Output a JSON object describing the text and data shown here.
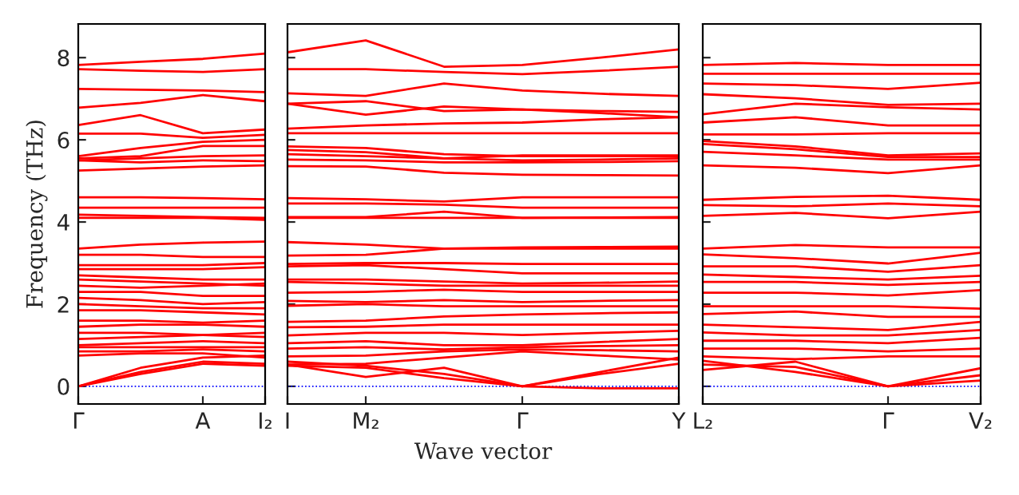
{
  "chart_data": [
    {
      "type": "line",
      "ylabel": "Frequency (THz)",
      "categories": [
        "Γ",
        null,
        "A",
        "I₂"
      ],
      "ylim": [
        -0.43,
        8.82
      ],
      "yticks": [
        0,
        2,
        4,
        6,
        8
      ],
      "line_style": "solid",
      "ref_lines": [
        {
          "axis": "y",
          "value": 0,
          "color": "#0000ff",
          "line_style": "dotted"
        }
      ],
      "series": [
        {
          "color": "#ff0000",
          "values": [
            7.82,
            7.9,
            7.97,
            8.1
          ]
        },
        {
          "color": "#ff0000",
          "values": [
            7.72,
            7.68,
            7.65,
            7.72
          ]
        },
        {
          "color": "#ff0000",
          "values": [
            7.24,
            7.22,
            7.2,
            7.16
          ]
        },
        {
          "color": "#ff0000",
          "values": [
            6.78,
            6.9,
            7.09,
            6.94
          ]
        },
        {
          "color": "#ff0000",
          "values": [
            6.36,
            6.6,
            6.16,
            6.25
          ]
        },
        {
          "color": "#ff0000",
          "values": [
            6.15,
            6.15,
            6.05,
            6.12
          ]
        },
        {
          "color": "#ff0000",
          "values": [
            5.6,
            5.8,
            5.95,
            6.0
          ]
        },
        {
          "color": "#ff0000",
          "values": [
            5.55,
            5.6,
            5.85,
            5.85
          ]
        },
        {
          "color": "#ff0000",
          "values": [
            5.5,
            5.55,
            5.6,
            5.62
          ]
        },
        {
          "color": "#ff0000",
          "values": [
            5.5,
            5.45,
            5.5,
            5.48
          ]
        },
        {
          "color": "#ff0000",
          "values": [
            5.25,
            5.3,
            5.35,
            5.38
          ]
        },
        {
          "color": "#ff0000",
          "values": [
            4.6,
            4.6,
            4.58,
            4.55
          ]
        },
        {
          "color": "#ff0000",
          "values": [
            4.35,
            4.35,
            4.35,
            4.35
          ]
        },
        {
          "color": "#ff0000",
          "values": [
            4.18,
            4.15,
            4.12,
            4.1
          ]
        },
        {
          "color": "#ff0000",
          "values": [
            4.1,
            4.1,
            4.1,
            4.05
          ]
        },
        {
          "color": "#ff0000",
          "values": [
            3.35,
            3.45,
            3.5,
            3.52
          ]
        },
        {
          "color": "#ff0000",
          "values": [
            3.2,
            3.2,
            3.15,
            3.15
          ]
        },
        {
          "color": "#ff0000",
          "values": [
            2.95,
            2.95,
            2.95,
            3.0
          ]
        },
        {
          "color": "#ff0000",
          "values": [
            2.85,
            2.85,
            2.85,
            2.9
          ]
        },
        {
          "color": "#ff0000",
          "values": [
            2.7,
            2.65,
            2.6,
            2.6
          ]
        },
        {
          "color": "#ff0000",
          "values": [
            2.6,
            2.55,
            2.5,
            2.45
          ]
        },
        {
          "color": "#ff0000",
          "values": [
            2.45,
            2.4,
            2.45,
            2.5
          ]
        },
        {
          "color": "#ff0000",
          "values": [
            2.3,
            2.3,
            2.2,
            2.2
          ]
        },
        {
          "color": "#ff0000",
          "values": [
            2.15,
            2.1,
            2.0,
            2.05
          ]
        },
        {
          "color": "#ff0000",
          "values": [
            2.0,
            1.95,
            1.9,
            1.9
          ]
        },
        {
          "color": "#ff0000",
          "values": [
            1.85,
            1.85,
            1.8,
            1.75
          ]
        },
        {
          "color": "#ff0000",
          "values": [
            1.6,
            1.6,
            1.55,
            1.6
          ]
        },
        {
          "color": "#ff0000",
          "values": [
            1.45,
            1.5,
            1.5,
            1.45
          ]
        },
        {
          "color": "#ff0000",
          "values": [
            1.3,
            1.3,
            1.25,
            1.3
          ]
        },
        {
          "color": "#ff0000",
          "values": [
            1.15,
            1.2,
            1.25,
            1.2
          ]
        },
        {
          "color": "#ff0000",
          "values": [
            1.0,
            1.05,
            1.1,
            1.05
          ]
        },
        {
          "color": "#ff0000",
          "values": [
            0.95,
            0.95,
            0.95,
            0.95
          ]
        },
        {
          "color": "#ff0000",
          "values": [
            0.85,
            0.85,
            0.9,
            0.85
          ]
        },
        {
          "color": "#ff0000",
          "values": [
            0.75,
            0.8,
            0.8,
            0.7
          ]
        },
        {
          "color": "#ff0000",
          "values": [
            0.0,
            0.45,
            0.7,
            0.75
          ]
        },
        {
          "color": "#ff0000",
          "values": [
            0.0,
            0.35,
            0.6,
            0.55
          ]
        },
        {
          "color": "#ff0000",
          "values": [
            0.0,
            0.3,
            0.55,
            0.5
          ]
        }
      ]
    },
    {
      "type": "line",
      "xlabel": "Wave vector",
      "categories": [
        "I",
        "M₂",
        null,
        "Γ",
        null,
        "Y"
      ],
      "ylim": [
        -0.43,
        8.82
      ],
      "yticks": [
        {
          "value": 0,
          "label": null
        },
        {
          "value": 2,
          "label": null
        },
        {
          "value": 4,
          "label": null
        },
        {
          "value": 6,
          "label": null
        },
        {
          "value": 8,
          "label": null
        }
      ],
      "tick_labels": "x",
      "line_style": "solid",
      "ref_lines": [
        {
          "axis": "y",
          "value": 0,
          "color": "#0000ff",
          "line_style": "dotted"
        }
      ],
      "series": [
        {
          "color": "#ff0000",
          "values": [
            8.13,
            8.42,
            7.78,
            7.82,
            8.0,
            8.2
          ]
        },
        {
          "color": "#ff0000",
          "values": [
            7.72,
            7.72,
            7.65,
            7.6,
            7.68,
            7.78
          ]
        },
        {
          "color": "#ff0000",
          "values": [
            7.13,
            7.07,
            7.37,
            7.2,
            7.12,
            7.07
          ]
        },
        {
          "color": "#ff0000",
          "values": [
            6.88,
            6.94,
            6.7,
            6.74,
            6.65,
            6.55
          ]
        },
        {
          "color": "#ff0000",
          "values": [
            6.88,
            6.61,
            6.81,
            6.74,
            6.7,
            6.68
          ]
        },
        {
          "color": "#ff0000",
          "values": [
            6.27,
            6.35,
            6.4,
            6.42,
            6.5,
            6.55
          ]
        },
        {
          "color": "#ff0000",
          "values": [
            6.16,
            6.16,
            6.16,
            6.16,
            6.16,
            6.16
          ]
        },
        {
          "color": "#ff0000",
          "values": [
            5.84,
            5.8,
            5.65,
            5.6,
            5.6,
            5.6
          ]
        },
        {
          "color": "#ff0000",
          "values": [
            5.75,
            5.7,
            5.55,
            5.5,
            5.52,
            5.55
          ]
        },
        {
          "color": "#ff0000",
          "values": [
            5.65,
            5.6,
            5.55,
            5.62,
            5.62,
            5.62
          ]
        },
        {
          "color": "#ff0000",
          "values": [
            5.52,
            5.5,
            5.45,
            5.45,
            5.46,
            5.48
          ]
        },
        {
          "color": "#ff0000",
          "values": [
            5.36,
            5.35,
            5.2,
            5.15,
            5.14,
            5.13
          ]
        },
        {
          "color": "#ff0000",
          "values": [
            4.58,
            4.55,
            4.5,
            4.6,
            4.6,
            4.6
          ]
        },
        {
          "color": "#ff0000",
          "values": [
            4.45,
            4.45,
            4.42,
            4.35,
            4.35,
            4.35
          ]
        },
        {
          "color": "#ff0000",
          "values": [
            4.12,
            4.12,
            4.25,
            4.1,
            4.11,
            4.12
          ]
        },
        {
          "color": "#ff0000",
          "values": [
            4.1,
            4.1,
            4.1,
            4.1,
            4.1,
            4.1
          ]
        },
        {
          "color": "#ff0000",
          "values": [
            3.51,
            3.45,
            3.35,
            3.35,
            3.35,
            3.35
          ]
        },
        {
          "color": "#ff0000",
          "values": [
            3.18,
            3.2,
            3.35,
            3.38,
            3.39,
            3.4
          ]
        },
        {
          "color": "#ff0000",
          "values": [
            2.98,
            3.0,
            3.0,
            2.98,
            2.98,
            2.98
          ]
        },
        {
          "color": "#ff0000",
          "values": [
            2.92,
            2.95,
            2.85,
            2.75,
            2.75,
            2.75
          ]
        },
        {
          "color": "#ff0000",
          "values": [
            2.6,
            2.6,
            2.55,
            2.5,
            2.52,
            2.55
          ]
        },
        {
          "color": "#ff0000",
          "values": [
            2.54,
            2.5,
            2.45,
            2.45,
            2.45,
            2.45
          ]
        },
        {
          "color": "#ff0000",
          "values": [
            2.28,
            2.3,
            2.35,
            2.3,
            2.3,
            2.3
          ]
        },
        {
          "color": "#ff0000",
          "values": [
            2.08,
            2.05,
            2.1,
            2.05,
            2.08,
            2.1
          ]
        },
        {
          "color": "#ff0000",
          "values": [
            1.96,
            2.0,
            1.95,
            1.95,
            1.95,
            1.95
          ]
        },
        {
          "color": "#ff0000",
          "values": [
            1.57,
            1.6,
            1.7,
            1.75,
            1.78,
            1.8
          ]
        },
        {
          "color": "#ff0000",
          "values": [
            1.44,
            1.45,
            1.5,
            1.5,
            1.5,
            1.5
          ]
        },
        {
          "color": "#ff0000",
          "values": [
            1.24,
            1.3,
            1.3,
            1.25,
            1.3,
            1.35
          ]
        },
        {
          "color": "#ff0000",
          "values": [
            1.05,
            1.1,
            1.0,
            1.0,
            1.08,
            1.15
          ]
        },
        {
          "color": "#ff0000",
          "values": [
            0.92,
            0.95,
            0.9,
            0.95,
            0.98,
            1.0
          ]
        },
        {
          "color": "#ff0000",
          "values": [
            0.73,
            0.75,
            0.85,
            0.9,
            0.88,
            0.85
          ]
        },
        {
          "color": "#ff0000",
          "values": [
            0.53,
            0.55,
            0.7,
            0.85,
            0.75,
            0.65
          ]
        },
        {
          "color": "#ff0000",
          "values": [
            0.53,
            0.23,
            0.45,
            0,
            0.35,
            0.7
          ]
        },
        {
          "color": "#ff0000",
          "values": [
            0.6,
            0.5,
            0.3,
            0,
            0.3,
            0.55
          ]
        },
        {
          "color": "#ff0000",
          "values": [
            0.5,
            0.45,
            0.2,
            0,
            -0.05,
            -0.05
          ]
        }
      ]
    },
    {
      "type": "line",
      "categories": [
        "L₂",
        null,
        "Γ",
        "V₂"
      ],
      "ylim": [
        -0.43,
        8.82
      ],
      "yticks": [
        {
          "value": 0,
          "label": null
        },
        {
          "value": 2,
          "label": null
        },
        {
          "value": 4,
          "label": null
        },
        {
          "value": 6,
          "label": null
        },
        {
          "value": 8,
          "label": null
        }
      ],
      "tick_labels": "x",
      "line_style": "solid",
      "ref_lines": [
        {
          "axis": "y",
          "value": 0,
          "color": "#0000ff",
          "line_style": "dotted"
        }
      ],
      "series": [
        {
          "color": "#ff0000",
          "values": [
            7.82,
            7.87,
            7.82,
            7.82
          ]
        },
        {
          "color": "#ff0000",
          "values": [
            7.61,
            7.61,
            7.61,
            7.61
          ]
        },
        {
          "color": "#ff0000",
          "values": [
            7.37,
            7.33,
            7.24,
            7.39
          ]
        },
        {
          "color": "#ff0000",
          "values": [
            7.11,
            7.01,
            6.85,
            6.88
          ]
        },
        {
          "color": "#ff0000",
          "values": [
            6.62,
            6.88,
            6.79,
            6.74
          ]
        },
        {
          "color": "#ff0000",
          "values": [
            6.42,
            6.55,
            6.35,
            6.35
          ]
        },
        {
          "color": "#ff0000",
          "values": [
            6.13,
            6.13,
            6.16,
            6.16
          ]
        },
        {
          "color": "#ff0000",
          "values": [
            5.97,
            5.84,
            5.62,
            5.67
          ]
        },
        {
          "color": "#ff0000",
          "values": [
            5.9,
            5.77,
            5.58,
            5.58
          ]
        },
        {
          "color": "#ff0000",
          "values": [
            5.71,
            5.62,
            5.52,
            5.52
          ]
        },
        {
          "color": "#ff0000",
          "values": [
            5.38,
            5.32,
            5.19,
            5.38
          ]
        },
        {
          "color": "#ff0000",
          "values": [
            4.54,
            4.61,
            4.64,
            4.54
          ]
        },
        {
          "color": "#ff0000",
          "values": [
            4.41,
            4.38,
            4.45,
            4.38
          ]
        },
        {
          "color": "#ff0000",
          "values": [
            4.15,
            4.22,
            4.09,
            4.25
          ]
        },
        {
          "color": "#ff0000",
          "values": [
            3.35,
            3.44,
            3.38,
            3.38
          ]
        },
        {
          "color": "#ff0000",
          "values": [
            3.21,
            3.12,
            2.99,
            3.25
          ]
        },
        {
          "color": "#ff0000",
          "values": [
            2.92,
            2.92,
            2.79,
            2.95
          ]
        },
        {
          "color": "#ff0000",
          "values": [
            2.72,
            2.66,
            2.6,
            2.69
          ]
        },
        {
          "color": "#ff0000",
          "values": [
            2.54,
            2.54,
            2.47,
            2.54
          ]
        },
        {
          "color": "#ff0000",
          "values": [
            2.28,
            2.28,
            2.21,
            2.34
          ]
        },
        {
          "color": "#ff0000",
          "values": [
            1.95,
            1.95,
            1.95,
            1.89
          ]
        },
        {
          "color": "#ff0000",
          "values": [
            1.76,
            1.82,
            1.69,
            1.69
          ]
        },
        {
          "color": "#ff0000",
          "values": [
            1.5,
            1.44,
            1.37,
            1.57
          ]
        },
        {
          "color": "#ff0000",
          "values": [
            1.31,
            1.24,
            1.24,
            1.37
          ]
        },
        {
          "color": "#ff0000",
          "values": [
            1.11,
            1.11,
            1.05,
            1.18
          ]
        },
        {
          "color": "#ff0000",
          "values": [
            0.92,
            0.92,
            0.85,
            0.92
          ]
        },
        {
          "color": "#ff0000",
          "values": [
            0.73,
            0.66,
            0.73,
            0.73
          ]
        },
        {
          "color": "#ff0000",
          "values": [
            0.4,
            0.6,
            0,
            0.44
          ]
        },
        {
          "color": "#ff0000",
          "values": [
            0.53,
            0.47,
            0,
            0.27
          ]
        },
        {
          "color": "#ff0000",
          "values": [
            0.62,
            0.35,
            0,
            0.14
          ]
        }
      ]
    }
  ]
}
